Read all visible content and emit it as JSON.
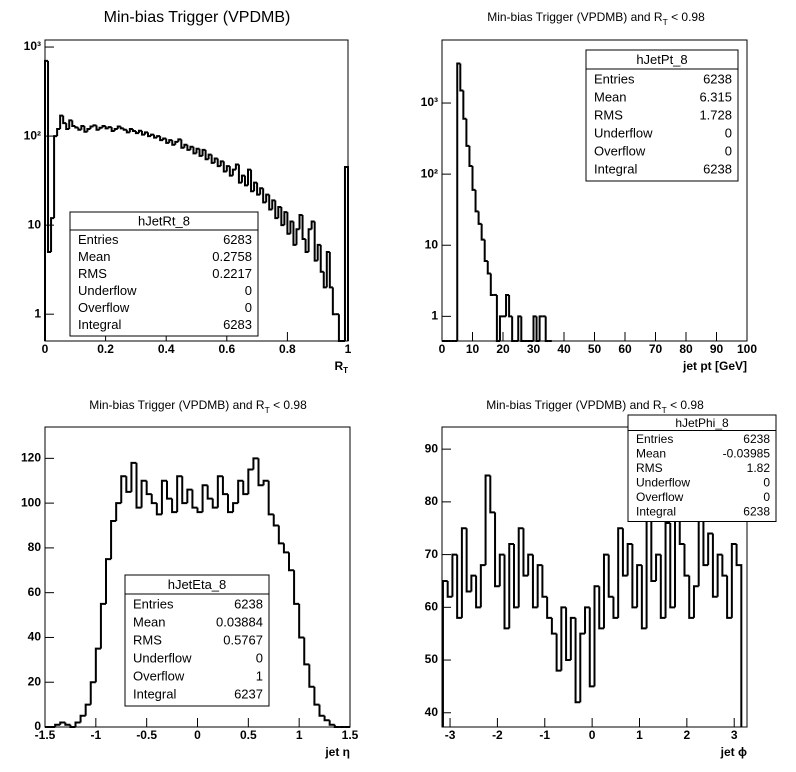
{
  "chart_data": [
    {
      "type": "histogram",
      "title": "Min-bias Trigger (VPDMB)",
      "x_label": "R",
      "x_label_subscript": "T",
      "log_y": true,
      "color": "#000000",
      "bins": [
        0,
        0.01,
        0.02,
        0.03,
        0.04,
        0.05,
        0.06,
        0.07,
        0.08,
        0.09,
        0.1,
        0.11,
        0.12,
        0.13,
        0.14,
        0.15,
        0.16,
        0.17,
        0.18,
        0.19,
        0.2,
        0.21,
        0.22,
        0.23,
        0.24,
        0.25,
        0.26,
        0.27,
        0.28,
        0.29,
        0.3,
        0.31,
        0.32,
        0.33,
        0.34,
        0.35,
        0.36,
        0.37,
        0.38,
        0.39,
        0.4,
        0.41,
        0.42,
        0.43,
        0.44,
        0.45,
        0.46,
        0.47,
        0.48,
        0.49,
        0.5,
        0.51,
        0.52,
        0.53,
        0.54,
        0.55,
        0.56,
        0.57,
        0.58,
        0.59,
        0.6,
        0.61,
        0.62,
        0.63,
        0.64,
        0.65,
        0.66,
        0.67,
        0.68,
        0.69,
        0.7,
        0.71,
        0.72,
        0.73,
        0.74,
        0.75,
        0.76,
        0.77,
        0.78,
        0.79,
        0.8,
        0.81,
        0.82,
        0.83,
        0.84,
        0.85,
        0.86,
        0.87,
        0.88,
        0.89,
        0.9,
        0.91,
        0.92,
        0.93,
        0.94,
        0.95,
        0.96,
        0.97,
        0.98,
        0.99,
        1
      ],
      "counts": [
        700,
        5,
        12,
        100,
        120,
        170,
        140,
        120,
        150,
        130,
        125,
        118,
        130,
        112,
        120,
        128,
        132,
        118,
        124,
        130,
        122,
        126,
        114,
        120,
        128,
        122,
        118,
        110,
        120,
        114,
        108,
        115,
        104,
        110,
        100,
        104,
        96,
        100,
        90,
        94,
        84,
        90,
        80,
        86,
        92,
        74,
        80,
        70,
        76,
        64,
        72,
        60,
        70,
        55,
        62,
        50,
        56,
        46,
        52,
        40,
        46,
        36,
        42,
        48,
        30,
        36,
        28,
        42,
        24,
        30,
        22,
        26,
        18,
        22,
        15,
        19,
        12,
        16,
        10,
        14,
        8,
        11,
        6,
        9,
        13,
        7,
        5,
        9,
        11,
        4,
        6,
        3,
        2,
        5,
        2,
        1,
        1,
        0,
        0,
        45
      ],
      "xlim": [
        0,
        1
      ],
      "ylim": [
        0.5,
        1200
      ],
      "xticks": [
        0,
        0.2,
        0.4,
        0.6,
        0.8,
        1
      ],
      "yticks": [
        1,
        10,
        {
          "value": 100,
          "label": "10²"
        },
        {
          "value": 1000,
          "label": "10³"
        }
      ],
      "stats": {
        "title": "hJetRt_8",
        "rows": [
          {
            "label": "Entries",
            "value": 6283
          },
          {
            "label": "Mean",
            "value": 0.2758
          },
          {
            "label": "RMS",
            "value": 0.2217
          },
          {
            "label": "Underflow",
            "value": 0
          },
          {
            "label": "Overflow",
            "value": 0
          },
          {
            "label": "Integral",
            "value": 6283
          }
        ]
      }
    },
    {
      "type": "histogram",
      "title": "Min-bias Trigger (VPDMB) and R",
      "title_subscript": "T",
      "title_end": " < 0.98",
      "x_label": "jet pt [GeV]",
      "log_y": true,
      "color": "#000000",
      "bins": [
        0,
        1,
        2,
        3,
        4,
        5,
        6,
        7,
        8,
        9,
        10,
        11,
        12,
        13,
        14,
        15,
        16,
        17,
        18,
        19,
        20,
        21,
        22,
        23,
        24,
        25,
        26,
        27,
        28,
        29,
        30,
        31,
        32,
        33,
        34,
        35,
        36
      ],
      "counts": [
        0,
        0,
        0,
        0,
        0,
        3600,
        1500,
        600,
        250,
        130,
        60,
        30,
        20,
        12,
        6,
        4,
        2,
        2,
        0,
        1,
        1,
        2,
        1,
        0,
        0,
        1,
        0,
        0,
        0,
        0,
        1,
        0,
        1,
        1,
        0,
        0
      ],
      "xlim": [
        0,
        100
      ],
      "ylim": [
        0.45,
        7700
      ],
      "xticks": [
        0,
        10,
        20,
        30,
        40,
        50,
        60,
        70,
        80,
        90,
        100
      ],
      "yticks": [
        1,
        10,
        {
          "value": 100,
          "label": "10²"
        },
        {
          "value": 1000,
          "label": "10³"
        }
      ],
      "stats": {
        "title": "hJetPt_8",
        "rows": [
          {
            "label": "Entries",
            "value": 6238
          },
          {
            "label": "Mean",
            "value": 6.315
          },
          {
            "label": "RMS",
            "value": 1.728
          },
          {
            "label": "Underflow",
            "value": 0
          },
          {
            "label": "Overflow",
            "value": 0
          },
          {
            "label": "Integral",
            "value": 6238
          }
        ]
      }
    },
    {
      "type": "histogram",
      "title": "Min-bias Trigger (VPDMB) and R",
      "title_subscript": "T",
      "title_end": " < 0.98",
      "x_label": "jet η",
      "log_y": false,
      "color": "#000000",
      "bins": [
        -1.5,
        -1.45,
        -1.4,
        -1.35,
        -1.3,
        -1.25,
        -1.2,
        -1.15,
        -1.1,
        -1.05,
        -1,
        -0.95,
        -0.9,
        -0.85,
        -0.8,
        -0.75,
        -0.7,
        -0.65,
        -0.6,
        -0.55,
        -0.5,
        -0.45,
        -0.4,
        -0.35,
        -0.3,
        -0.25,
        -0.2,
        -0.15,
        -0.1,
        -0.05,
        0,
        0.05,
        0.1,
        0.15,
        0.2,
        0.25,
        0.3,
        0.35,
        0.4,
        0.45,
        0.5,
        0.55,
        0.6,
        0.65,
        0.7,
        0.75,
        0.8,
        0.85,
        0.9,
        0.95,
        1,
        1.05,
        1.1,
        1.15,
        1.2,
        1.25,
        1.3,
        1.35,
        1.4,
        1.45,
        1.5
      ],
      "counts": [
        0,
        0,
        1,
        2,
        1,
        0,
        2,
        5,
        10,
        20,
        35,
        55,
        75,
        92,
        100,
        112,
        105,
        118,
        98,
        110,
        104,
        100,
        95,
        110,
        102,
        96,
        112,
        100,
        106,
        98,
        96,
        108,
        102,
        98,
        112,
        104,
        96,
        100,
        110,
        104,
        115,
        120,
        108,
        110,
        95,
        90,
        82,
        78,
        70,
        55,
        40,
        28,
        18,
        10,
        5,
        3,
        1,
        0,
        0,
        0
      ],
      "xlim": [
        -1.5,
        1.5
      ],
      "ylim": [
        0,
        134
      ],
      "xticks": [
        -1.5,
        -1,
        -0.5,
        0,
        0.5,
        1,
        1.5
      ],
      "yticks": [
        0,
        20,
        40,
        60,
        80,
        100,
        120
      ],
      "stats": {
        "title": "hJetEta_8",
        "rows": [
          {
            "label": "Entries",
            "value": 6238
          },
          {
            "label": "Mean",
            "value": 0.03884
          },
          {
            "label": "RMS",
            "value": 0.5767
          },
          {
            "label": "Underflow",
            "value": 0
          },
          {
            "label": "Overflow",
            "value": 1
          },
          {
            "label": "Integral",
            "value": 6237
          }
        ]
      }
    },
    {
      "type": "histogram",
      "title": "Min-bias Trigger (VPDMB) and R",
      "title_subscript": "T",
      "title_end": " < 0.98",
      "x_label": "jet ϕ",
      "log_y": false,
      "color": "#000000",
      "bins": [
        -3.15,
        -3.05,
        -2.95,
        -2.85,
        -2.75,
        -2.65,
        -2.55,
        -2.45,
        -2.35,
        -2.25,
        -2.15,
        -2.05,
        -1.95,
        -1.85,
        -1.75,
        -1.65,
        -1.55,
        -1.45,
        -1.35,
        -1.25,
        -1.15,
        -1.05,
        -0.95,
        -0.85,
        -0.75,
        -0.65,
        -0.55,
        -0.45,
        -0.35,
        -0.25,
        -0.15,
        -0.05,
        0.05,
        0.15,
        0.25,
        0.35,
        0.45,
        0.55,
        0.65,
        0.75,
        0.85,
        0.95,
        1.05,
        1.15,
        1.25,
        1.35,
        1.45,
        1.55,
        1.65,
        1.75,
        1.85,
        1.95,
        2.05,
        2.15,
        2.25,
        2.35,
        2.45,
        2.55,
        2.65,
        2.75,
        2.85,
        2.95,
        3.05,
        3.15
      ],
      "counts": [
        65,
        62,
        70,
        58,
        75,
        63,
        66,
        60,
        68,
        85,
        78,
        64,
        70,
        56,
        72,
        60,
        75,
        66,
        70,
        60,
        68,
        62,
        58,
        55,
        48,
        60,
        50,
        58,
        42,
        55,
        60,
        45,
        64,
        56,
        70,
        62,
        58,
        75,
        66,
        72,
        60,
        68,
        56,
        78,
        65,
        70,
        58,
        76,
        60,
        82,
        72,
        66,
        58,
        64,
        80,
        68,
        74,
        62,
        70,
        66,
        58,
        72,
        68
      ],
      "xlim": [
        -3.17,
        3.27
      ],
      "ylim": [
        37.3,
        94.2
      ],
      "xticks": [
        -3,
        -2,
        -1,
        0,
        1,
        2,
        3
      ],
      "yticks": [
        40,
        50,
        60,
        70,
        80,
        90
      ],
      "stats": {
        "title": "hJetPhi_8",
        "rows": [
          {
            "label": "Entries",
            "value": 6238
          },
          {
            "label": "Mean",
            "value": -0.03985
          },
          {
            "label": "RMS",
            "value": 1.82
          },
          {
            "label": "Underflow",
            "value": 0
          },
          {
            "label": "Overflow",
            "value": 0
          },
          {
            "label": "Integral",
            "value": 6238
          }
        ]
      }
    }
  ]
}
